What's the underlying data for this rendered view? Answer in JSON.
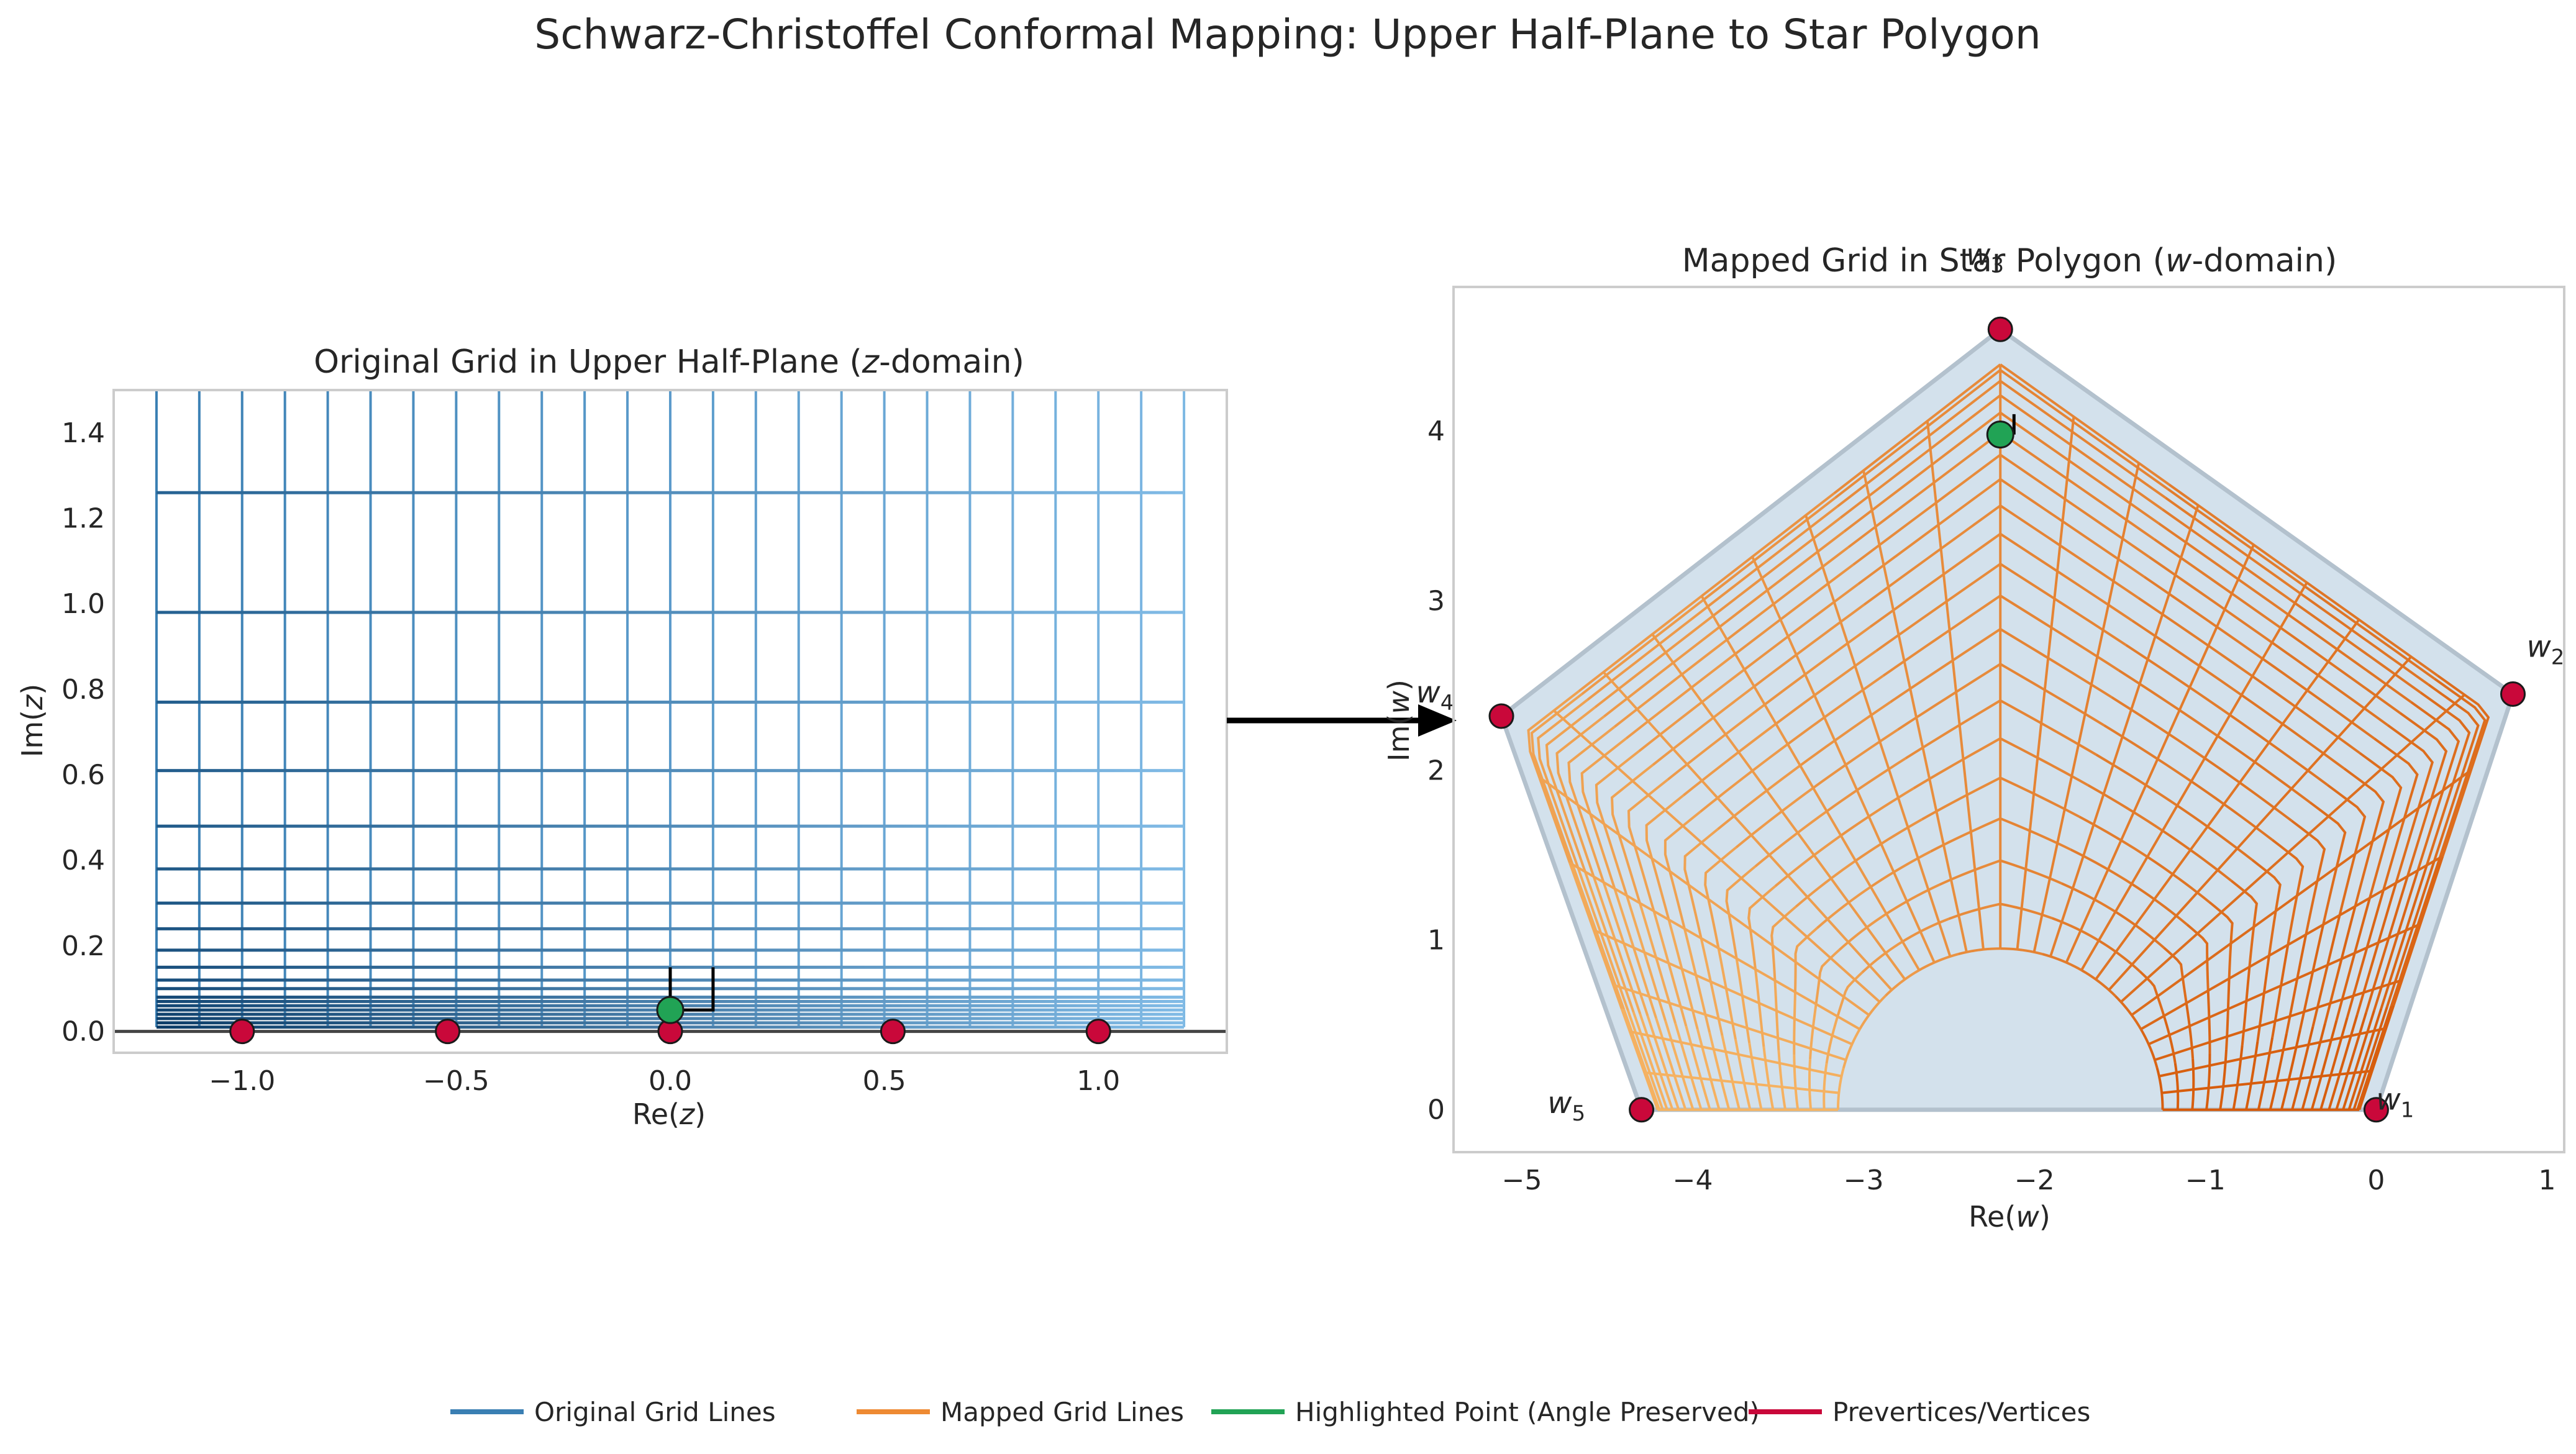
{
  "figure_title": "Schwarz-Christoffel Conformal Mapping: Upper Half-Plane to Star Polygon",
  "colors": {
    "original": "#3a7fb3",
    "original_dark": "#0b3b66",
    "original_light": "#8ec6ef",
    "mapped": "#ee8a33",
    "mapped_dark": "#d65a0a",
    "mapped_light": "#f6b565",
    "highlight": "#21a355",
    "vertex": "#c9083a",
    "polygon_fill": "#d3e1ec",
    "polygon_edge": "#b3c1cd"
  },
  "chart_data": [
    {
      "type": "line",
      "title": "Original Grid in Upper Half-Plane (z-domain)",
      "title_parts": [
        "Original Grid in Upper Half-Plane (",
        "z",
        "-domain)"
      ],
      "xlabel": "Re(z)",
      "xlabel_parts": [
        "Re(",
        "z",
        ")"
      ],
      "ylabel": "Im(z)",
      "ylabel_parts": [
        "Im(",
        "z",
        ")"
      ],
      "xlim": [
        -1.3,
        1.3
      ],
      "ylim": [
        -0.05,
        1.5
      ],
      "xticks": [
        -1.0,
        -0.5,
        0.0,
        0.5,
        1.0
      ],
      "xtick_labels": [
        "−1.0",
        "−0.5",
        "0.0",
        "0.5",
        "1.0"
      ],
      "yticks": [
        0.0,
        0.2,
        0.4,
        0.6,
        0.8,
        1.0,
        1.2,
        1.4
      ],
      "ytick_labels": [
        "0.0",
        "0.2",
        "0.4",
        "0.6",
        "0.8",
        "1.0",
        "1.2",
        "1.4"
      ],
      "grid": false,
      "vertical_lines_x": [
        -1.2,
        -1.1,
        -1.0,
        -0.9,
        -0.8,
        -0.7,
        -0.6,
        -0.5,
        -0.4,
        -0.3,
        -0.2,
        -0.1,
        0.0,
        0.1,
        0.2,
        0.3,
        0.4,
        0.5,
        0.6,
        0.7,
        0.8,
        0.9,
        1.0,
        1.1,
        1.2
      ],
      "vertical_lines_y_range": [
        0.01,
        1.5
      ],
      "horizontal_lines_y": [
        0.01,
        0.02,
        0.03,
        0.04,
        0.05,
        0.06,
        0.07,
        0.08,
        0.1,
        0.12,
        0.15,
        0.19,
        0.24,
        0.3,
        0.38,
        0.48,
        0.61,
        0.77,
        0.98,
        1.26
      ],
      "horizontal_lines_x_range": [
        -1.2,
        1.2
      ],
      "prevertices": [
        {
          "x": -1.0,
          "y": 0.0
        },
        {
          "x": -0.52,
          "y": 0.0
        },
        {
          "x": 0.0,
          "y": 0.0
        },
        {
          "x": 0.52,
          "y": 0.0
        },
        {
          "x": 1.0,
          "y": 0.0
        }
      ],
      "highlight_point": {
        "x": 0.0,
        "y": 0.05
      },
      "angle_marker": {
        "corner": [
          0.1,
          0.05
        ],
        "h_len": 0.1,
        "v_len": 0.1
      }
    },
    {
      "type": "line",
      "title": "Mapped Grid in Star Polygon (w-domain)",
      "title_parts": [
        "Mapped Grid in Star Polygon (",
        "w",
        "-domain)"
      ],
      "xlabel": "Re(w)",
      "xlabel_parts": [
        "Re(",
        "w",
        ")"
      ],
      "ylabel": "Im(w)",
      "ylabel_parts": [
        "Im(",
        "w",
        ")"
      ],
      "xlim": [
        -5.4,
        1.1
      ],
      "ylim": [
        -0.25,
        4.85
      ],
      "xticks": [
        -5,
        -4,
        -3,
        -2,
        -1,
        0,
        1
      ],
      "xtick_labels": [
        "−5",
        "−4",
        "−3",
        "−2",
        "−1",
        "0",
        "1"
      ],
      "yticks": [
        0,
        1,
        2,
        3,
        4
      ],
      "ytick_labels": [
        "0",
        "1",
        "2",
        "3",
        "4"
      ],
      "grid": false,
      "polygon_vertices": [
        {
          "label": "w",
          "sub": "1",
          "x": 0.0,
          "y": 0.0
        },
        {
          "label": "w",
          "sub": "2",
          "x": 0.8,
          "y": 2.45
        },
        {
          "label": "w",
          "sub": "3",
          "x": -2.2,
          "y": 4.6
        },
        {
          "label": "w",
          "sub": "4",
          "x": -5.12,
          "y": 2.32
        },
        {
          "label": "w",
          "sub": "5",
          "x": -4.3,
          "y": 0.0
        }
      ],
      "grid_center": {
        "x": -2.2,
        "y": 0.0
      },
      "radial_lines_angles_deg": [
        0,
        6,
        12,
        18,
        24,
        30,
        36,
        42,
        48,
        54,
        60,
        66,
        72,
        78,
        84,
        90,
        96,
        102,
        108,
        114,
        120,
        126,
        132,
        138,
        144,
        150,
        156,
        162,
        168,
        174,
        180
      ],
      "grid_radius_range": [
        0.95,
        4.45
      ],
      "arc_count": 20,
      "highlight_point": {
        "x": -2.2,
        "y": 3.98
      },
      "angle_marker": {
        "corner": [
          -2.2,
          3.98
        ],
        "len": 0.12
      }
    }
  ],
  "arrow": {
    "from_panel": "original",
    "to_panel": "mapped"
  },
  "legend": [
    {
      "label": "Original Grid Lines",
      "color": "#3a7fb3"
    },
    {
      "label": "Mapped Grid Lines",
      "color": "#ee8a33"
    },
    {
      "label": "Highlighted Point (Angle Preserved)",
      "color": "#21a355"
    },
    {
      "label": "Prevertices/Vertices",
      "color": "#c9083a"
    }
  ],
  "legend_placement": "bottom-center"
}
